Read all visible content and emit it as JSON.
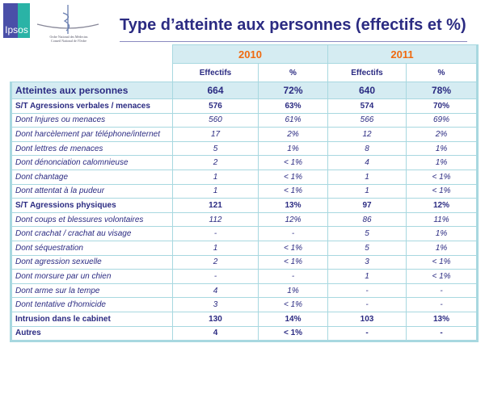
{
  "logos": {
    "ipsos": "Ipsos",
    "ordre": "Ordre National des Médecins",
    "ordre_sub": "Conseil National de l'Ordre"
  },
  "title": "Type d’atteinte aux personnes (effectifs et %)",
  "years": [
    "2010",
    "2011"
  ],
  "subheaders": [
    "Effectifs",
    "%",
    "Effectifs",
    "%"
  ],
  "rows": [
    {
      "label": "Atteintes aux personnes",
      "style": "main",
      "values": [
        "664",
        "72%",
        "640",
        "78%"
      ]
    },
    {
      "label": "S/T Agressions verbales / menaces",
      "style": "b",
      "values": [
        "576",
        "63%",
        "574",
        "70%"
      ]
    },
    {
      "label": "Dont Injures ou menaces",
      "style": "i",
      "values": [
        "560",
        "61%",
        "566",
        "69%"
      ]
    },
    {
      "label": "Dont harcèlement par téléphone/internet",
      "style": "i",
      "values": [
        "17",
        "2%",
        "12",
        "2%"
      ]
    },
    {
      "label": "Dont lettres de menaces",
      "style": "i",
      "values": [
        "5",
        "1%",
        "8",
        "1%"
      ]
    },
    {
      "label": "Dont dénonciation calomnieuse",
      "style": "i",
      "values": [
        "2",
        "< 1%",
        "4",
        "1%"
      ]
    },
    {
      "label": "Dont chantage",
      "style": "i",
      "values": [
        "1",
        "< 1%",
        "1",
        "< 1%"
      ]
    },
    {
      "label": "Dont attentat à la pudeur",
      "style": "i",
      "values": [
        "1",
        "< 1%",
        "1",
        "< 1%"
      ]
    },
    {
      "label": "S/T Agressions physiques",
      "style": "b",
      "values": [
        "121",
        "13%",
        "97",
        "12%"
      ]
    },
    {
      "label": "Dont coups et blessures volontaires",
      "style": "i",
      "values": [
        "112",
        "12%",
        "86",
        "11%"
      ]
    },
    {
      "label": "Dont crachat / crachat au visage",
      "style": "i",
      "values": [
        "-",
        "-",
        "5",
        "1%"
      ]
    },
    {
      "label": "Dont séquestration",
      "style": "i",
      "values": [
        "1",
        "< 1%",
        "5",
        "1%"
      ]
    },
    {
      "label": "Dont agression sexuelle",
      "style": "i",
      "values": [
        "2",
        "< 1%",
        "3",
        "< 1%"
      ]
    },
    {
      "label": "Dont morsure par un chien",
      "style": "i",
      "values": [
        "-",
        "-",
        "1",
        "< 1%"
      ]
    },
    {
      "label": "Dont arme sur la tempe",
      "style": "i",
      "values": [
        "4",
        "1%",
        "-",
        "-"
      ]
    },
    {
      "label": "Dont tentative d'homicide",
      "style": "i",
      "values": [
        "3",
        "< 1%",
        "-",
        "-"
      ]
    },
    {
      "label": "Intrusion dans le cabinet",
      "style": "b",
      "values": [
        "130",
        "14%",
        "103",
        "13%"
      ]
    },
    {
      "label": "Autres",
      "style": "b",
      "values": [
        "4",
        "< 1%",
        "-",
        "-"
      ]
    }
  ]
}
